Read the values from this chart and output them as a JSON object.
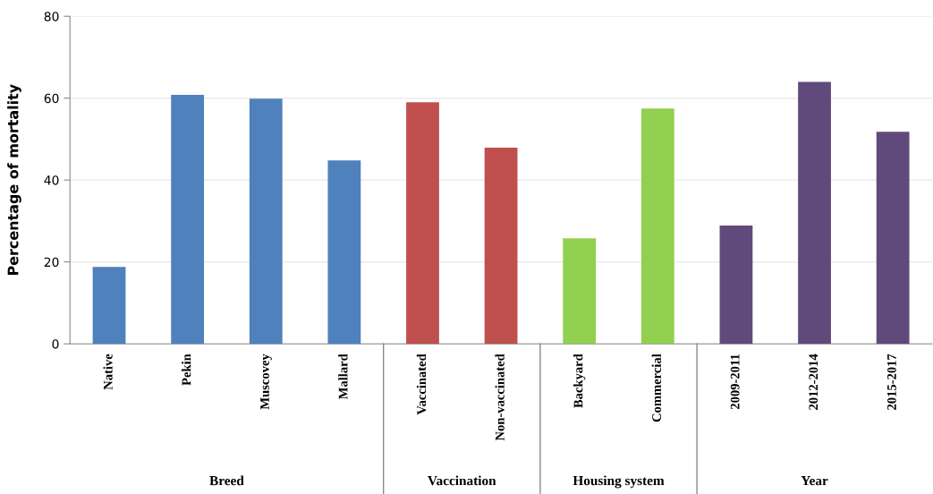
{
  "chart_data": {
    "type": "bar",
    "ylabel": "Percentage of mortality",
    "categories": [
      "Native",
      "Pekin",
      "Muscovey",
      "Mallard",
      "Vaccinated",
      "Non-vaccinated",
      "Backyard",
      "Commercial",
      "2009-2011",
      "2012-2014",
      "2015-2017"
    ],
    "values": [
      18.8,
      60.8,
      59.9,
      44.8,
      59.0,
      47.9,
      25.8,
      57.5,
      28.9,
      64.0,
      51.8
    ],
    "colors": [
      "#4f81bd",
      "#4f81bd",
      "#4f81bd",
      "#4f81bd",
      "#c0504d",
      "#c0504d",
      "#92d050",
      "#92d050",
      "#604a7b",
      "#604a7b",
      "#604a7b"
    ],
    "annotations": [
      "Breed",
      "Vaccination",
      "Housing system",
      "Year"
    ],
    "ylim": [
      0,
      80
    ],
    "yticks": [
      0,
      20,
      40,
      60,
      80
    ],
    "grid": "y"
  }
}
